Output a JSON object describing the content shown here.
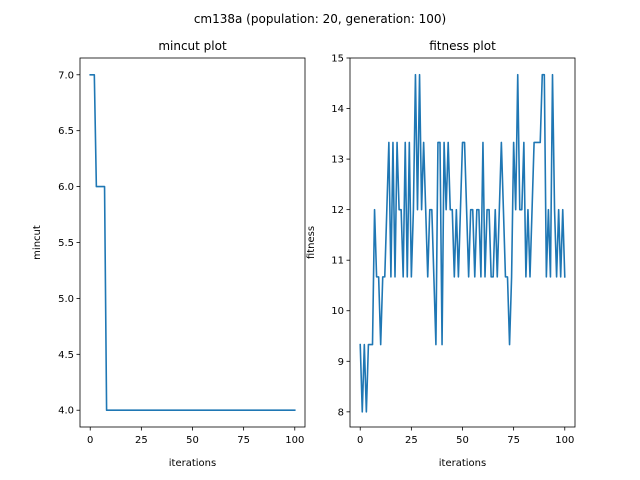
{
  "figure": {
    "suptitle": "cm138a (population: 20, generation: 100)"
  },
  "chart_data": [
    {
      "type": "line",
      "title": "mincut plot",
      "xlabel": "iterations",
      "ylabel": "mincut",
      "xlim": [
        -5,
        105
      ],
      "ylim": [
        3.85,
        7.15
      ],
      "xticks": [
        0,
        25,
        50,
        75,
        100
      ],
      "yticks": [
        4.0,
        4.5,
        5.0,
        5.5,
        6.0,
        6.5,
        7.0
      ],
      "ytick_labels": [
        "4.0",
        "4.5",
        "5.0",
        "5.5",
        "6.0",
        "6.5",
        "7.0"
      ],
      "color": "#1f77b4",
      "x": [
        0,
        1,
        2,
        3,
        4,
        5,
        6,
        7,
        8,
        9,
        10,
        11,
        12,
        13,
        14,
        15,
        16,
        17,
        18,
        19,
        20,
        21,
        22,
        23,
        24,
        25,
        26,
        27,
        28,
        29,
        30,
        31,
        32,
        33,
        34,
        35,
        36,
        37,
        38,
        39,
        40,
        41,
        42,
        43,
        44,
        45,
        46,
        47,
        48,
        49,
        50,
        51,
        52,
        53,
        54,
        55,
        56,
        57,
        58,
        59,
        60,
        61,
        62,
        63,
        64,
        65,
        66,
        67,
        68,
        69,
        70,
        71,
        72,
        73,
        74,
        75,
        76,
        77,
        78,
        79,
        80,
        81,
        82,
        83,
        84,
        85,
        86,
        87,
        88,
        89,
        90,
        91,
        92,
        93,
        94,
        95,
        96,
        97,
        98,
        99,
        100
      ],
      "y": [
        7,
        7,
        7,
        6,
        6,
        6,
        6,
        6,
        4,
        4,
        4,
        4,
        4,
        4,
        4,
        4,
        4,
        4,
        4,
        4,
        4,
        4,
        4,
        4,
        4,
        4,
        4,
        4,
        4,
        4,
        4,
        4,
        4,
        4,
        4,
        4,
        4,
        4,
        4,
        4,
        4,
        4,
        4,
        4,
        4,
        4,
        4,
        4,
        4,
        4,
        4,
        4,
        4,
        4,
        4,
        4,
        4,
        4,
        4,
        4,
        4,
        4,
        4,
        4,
        4,
        4,
        4,
        4,
        4,
        4,
        4,
        4,
        4,
        4,
        4,
        4,
        4,
        4,
        4,
        4,
        4,
        4,
        4,
        4,
        4,
        4,
        4,
        4,
        4,
        4,
        4,
        4,
        4,
        4,
        4,
        4,
        4,
        4,
        4,
        4,
        4
      ]
    },
    {
      "type": "line",
      "title": "fitness plot",
      "xlabel": "iterations",
      "ylabel": "fitness",
      "xlim": [
        -5,
        105
      ],
      "ylim": [
        7.7,
        15
      ],
      "xticks": [
        0,
        25,
        50,
        75,
        100
      ],
      "yticks": [
        8,
        9,
        10,
        11,
        12,
        13,
        14,
        15
      ],
      "ytick_labels": [
        "8",
        "9",
        "10",
        "11",
        "12",
        "13",
        "14",
        "15"
      ],
      "color": "#1f77b4",
      "x": [
        0,
        1,
        2,
        3,
        4,
        5,
        6,
        7,
        8,
        9,
        10,
        11,
        12,
        13,
        14,
        15,
        16,
        17,
        18,
        19,
        20,
        21,
        22,
        23,
        24,
        25,
        26,
        27,
        28,
        29,
        30,
        31,
        32,
        33,
        34,
        35,
        36,
        37,
        38,
        39,
        40,
        41,
        42,
        43,
        44,
        45,
        46,
        47,
        48,
        49,
        50,
        51,
        52,
        53,
        54,
        55,
        56,
        57,
        58,
        59,
        60,
        61,
        62,
        63,
        64,
        65,
        66,
        67,
        68,
        69,
        70,
        71,
        72,
        73,
        74,
        75,
        76,
        77,
        78,
        79,
        80,
        81,
        82,
        83,
        84,
        85,
        86,
        87,
        88,
        89,
        90,
        91,
        92,
        93,
        94,
        95,
        96,
        97,
        98,
        99,
        100
      ],
      "y": [
        9.33,
        8,
        9.33,
        8,
        9.33,
        9.33,
        9.33,
        12,
        10.67,
        10.67,
        9.33,
        10.67,
        10.67,
        12,
        13.33,
        10.67,
        13.33,
        10.67,
        13.33,
        12,
        12,
        10.67,
        13.33,
        10.67,
        13.33,
        10.67,
        12,
        14.67,
        12,
        14.67,
        12,
        13.33,
        12,
        10.67,
        12,
        12,
        10.67,
        9.33,
        13.33,
        13.33,
        9.33,
        13.33,
        12,
        13.33,
        12,
        12,
        10.67,
        12,
        10.67,
        12,
        13.33,
        13.33,
        12,
        10.67,
        12,
        12,
        10.67,
        12,
        12,
        10.67,
        13.33,
        10.67,
        12,
        12,
        10.67,
        10.67,
        12,
        10.67,
        12,
        13.33,
        12,
        10.67,
        10.67,
        9.33,
        10.67,
        13.33,
        12,
        14.67,
        12,
        12,
        13.33,
        10.67,
        12,
        10.67,
        12,
        13.33,
        13.33,
        13.33,
        13.33,
        14.67,
        14.67,
        10.67,
        12,
        10.67,
        14.67,
        12,
        10.67,
        12,
        10.67,
        12,
        10.67
      ]
    }
  ]
}
